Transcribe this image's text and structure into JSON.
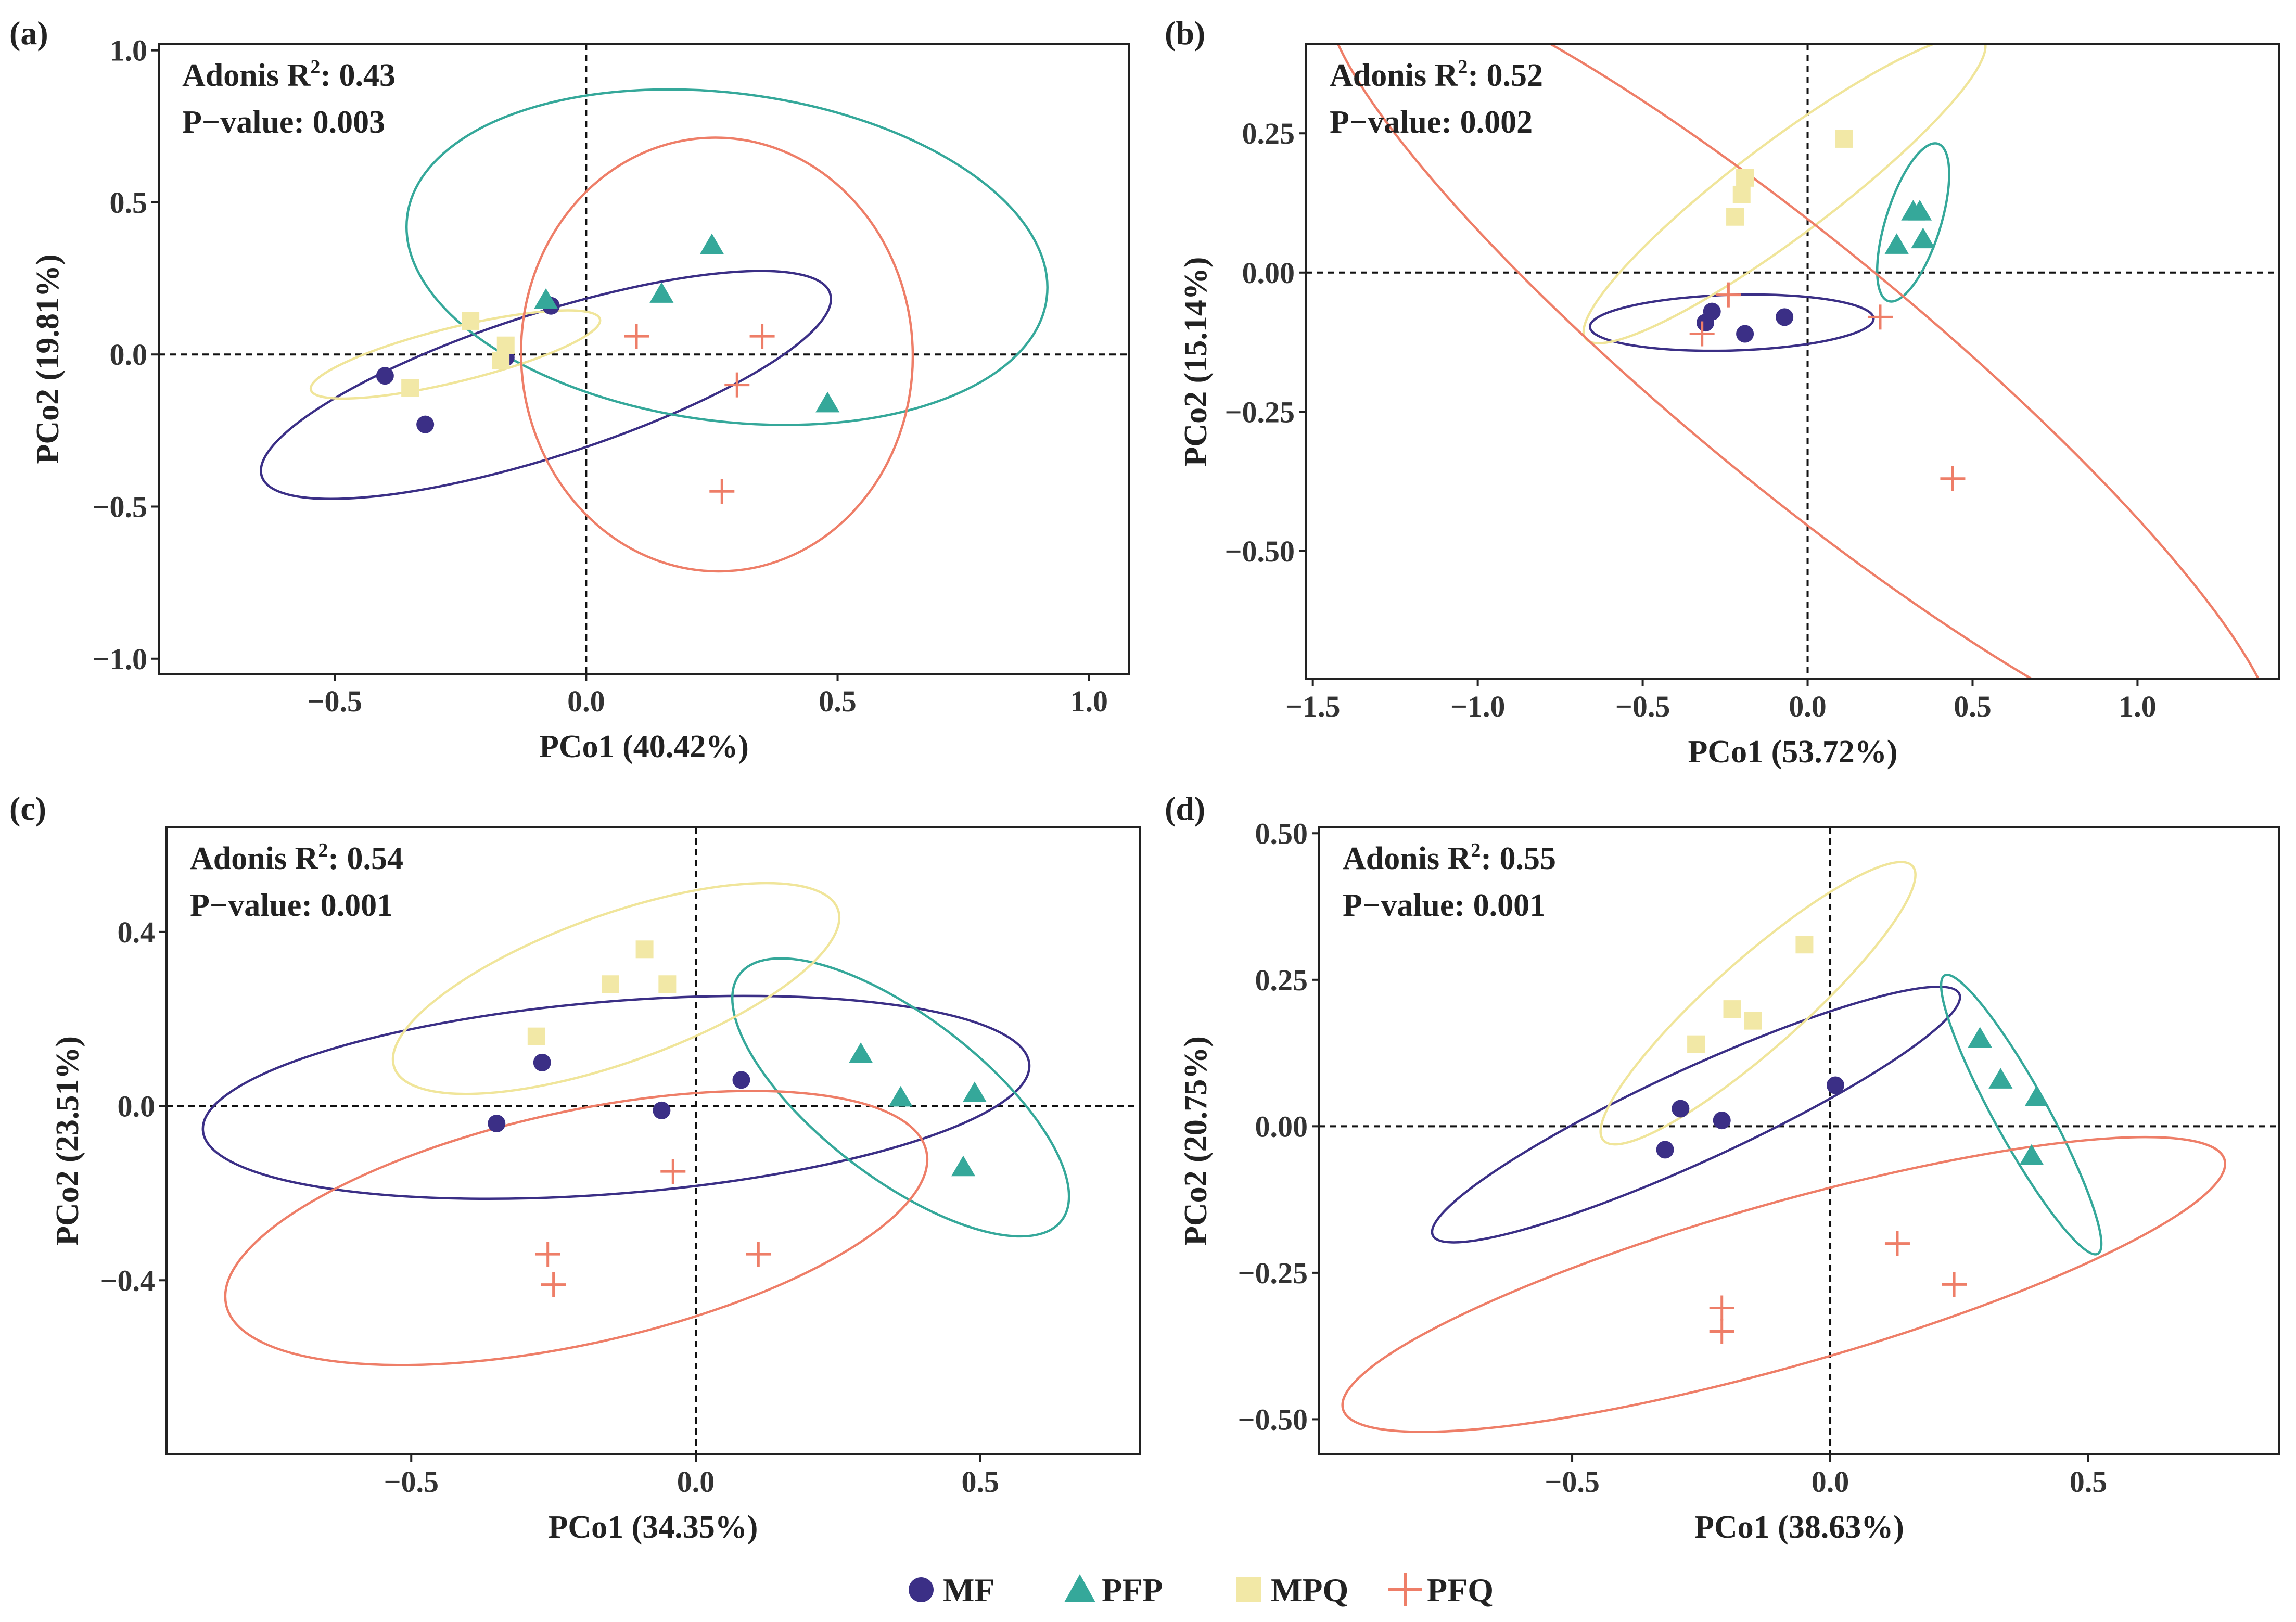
{
  "chart_data": [
    {
      "type": "scatter",
      "panel_label": "(a)",
      "xlabel": "PCo1 (40.42%)",
      "ylabel": "PCo2 (19.81%)",
      "xlim": [
        -0.85,
        1.08
      ],
      "ylim": [
        -1.05,
        1.02
      ],
      "xticks": [
        -0.5,
        0.0,
        0.5,
        1.0
      ],
      "xtick_labels": [
        "−0.5",
        "0.0",
        "0.5",
        "1.0"
      ],
      "yticks": [
        -1.0,
        -0.5,
        0.0,
        0.5,
        1.0
      ],
      "ytick_labels": [
        "−1.0",
        "−0.5",
        "0.0",
        "0.5",
        "1.0"
      ],
      "annotation": {
        "adonis_prefix": "Adonis R",
        "r2_superscript": "2",
        "adonis_value": ": 0.43",
        "pvalue_text": "P−value: 0.003"
      },
      "series": [
        {
          "name": "MF",
          "points": [
            [
              -0.4,
              -0.07
            ],
            [
              -0.32,
              -0.23
            ],
            [
              -0.16,
              -0.01
            ],
            [
              -0.07,
              0.16
            ]
          ],
          "ellipse": {
            "cx": -0.08,
            "cy": -0.1,
            "rx": 0.64,
            "ry": 0.2,
            "angle_deg": 28
          }
        },
        {
          "name": "PFP",
          "points": [
            [
              -0.08,
              0.18
            ],
            [
              0.15,
              0.2
            ],
            [
              0.25,
              0.36
            ],
            [
              0.48,
              -0.16
            ]
          ],
          "ellipse": {
            "cx": 0.28,
            "cy": 0.32,
            "rx": 0.65,
            "ry": 0.52,
            "angle_deg": -12
          }
        },
        {
          "name": "MPQ",
          "points": [
            [
              -0.23,
              0.11
            ],
            [
              -0.16,
              0.03
            ],
            [
              -0.17,
              -0.02
            ],
            [
              -0.35,
              -0.11
            ]
          ],
          "ellipse": {
            "cx": -0.26,
            "cy": 0.0,
            "rx": 0.31,
            "ry": 0.08,
            "angle_deg": 22
          }
        },
        {
          "name": "PFQ",
          "points": [
            [
              0.1,
              0.06
            ],
            [
              0.35,
              0.06
            ],
            [
              0.3,
              -0.1
            ],
            [
              0.27,
              -0.45
            ]
          ],
          "ellipse": {
            "cx": 0.26,
            "cy": 0.0,
            "rx": 0.39,
            "ry": 0.71,
            "angle_deg": 4
          }
        }
      ]
    },
    {
      "type": "scatter",
      "panel_label": "(b)",
      "xlabel": "PCo1 (53.72%)",
      "ylabel": "PCo2 (15.14%)",
      "xlim": [
        -1.52,
        1.43
      ],
      "ylim": [
        -0.73,
        0.41
      ],
      "xticks": [
        -1.5,
        -1.0,
        -0.5,
        0.0,
        0.5,
        1.0
      ],
      "xtick_labels": [
        "−1.5",
        "−1.0",
        "−0.5",
        "0.0",
        "0.5",
        "1.0"
      ],
      "yticks": [
        -0.5,
        -0.25,
        0.0,
        0.25
      ],
      "ytick_labels": [
        "−0.50",
        "−0.25",
        "0.00",
        "0.25"
      ],
      "annotation": {
        "adonis_prefix": "Adonis R",
        "r2_superscript": "2",
        "adonis_value": ": 0.52",
        "pvalue_text": "P−value: 0.002"
      },
      "series": [
        {
          "name": "MF",
          "points": [
            [
              -0.31,
              -0.09
            ],
            [
              -0.29,
              -0.07
            ],
            [
              -0.19,
              -0.11
            ],
            [
              -0.07,
              -0.08
            ]
          ],
          "ellipse": {
            "cx": -0.23,
            "cy": -0.09,
            "rx": 0.43,
            "ry": 0.05,
            "angle_deg": 1
          }
        },
        {
          "name": "PFP",
          "points": [
            [
              0.32,
              0.11
            ],
            [
              0.34,
              0.11
            ],
            [
              0.27,
              0.05
            ],
            [
              0.35,
              0.06
            ]
          ],
          "ellipse": {
            "cx": 0.32,
            "cy": 0.09,
            "rx": 0.16,
            "ry": 0.07,
            "angle_deg": 62
          }
        },
        {
          "name": "MPQ",
          "points": [
            [
              0.11,
              0.24
            ],
            [
              -0.19,
              0.17
            ],
            [
              -0.2,
              0.14
            ],
            [
              -0.22,
              0.1
            ]
          ],
          "ellipse": {
            "cx": -0.07,
            "cy": 0.15,
            "rx": 0.66,
            "ry": 0.09,
            "angle_deg": 24
          }
        },
        {
          "name": "PFQ",
          "points": [
            [
              -0.24,
              -0.04
            ],
            [
              -0.32,
              -0.11
            ],
            [
              0.22,
              -0.08
            ],
            [
              0.44,
              -0.37
            ]
          ],
          "ellipse": {
            "cx": -0.02,
            "cy": -0.17,
            "rx": 1.58,
            "ry": 0.23,
            "angle_deg": -26
          }
        }
      ]
    },
    {
      "type": "scatter",
      "panel_label": "(c)",
      "xlabel": "PCo1 (34.35%)",
      "ylabel": "PCo2 (23.51%)",
      "xlim": [
        -0.93,
        0.78
      ],
      "ylim": [
        -0.8,
        0.64
      ],
      "xticks": [
        -0.5,
        0.0,
        0.5
      ],
      "xtick_labels": [
        "−0.5",
        "0.0",
        "0.5"
      ],
      "yticks": [
        -0.4,
        0.0,
        0.4
      ],
      "ytick_labels": [
        "−0.4",
        "0.0",
        "0.4"
      ],
      "annotation": {
        "adonis_prefix": "Adonis R",
        "r2_superscript": "2",
        "adonis_value": ": 0.54",
        "pvalue_text": "P−value: 0.001"
      },
      "series": [
        {
          "name": "MF",
          "points": [
            [
              -0.27,
              0.1
            ],
            [
              -0.35,
              -0.04
            ],
            [
              -0.06,
              -0.01
            ],
            [
              0.08,
              0.06
            ]
          ],
          "ellipse": {
            "cx": -0.14,
            "cy": 0.02,
            "rx": 0.73,
            "ry": 0.22,
            "angle_deg": 6
          }
        },
        {
          "name": "PFP",
          "points": [
            [
              0.29,
              0.12
            ],
            [
              0.36,
              0.02
            ],
            [
              0.49,
              0.03
            ],
            [
              0.47,
              -0.14
            ]
          ],
          "ellipse": {
            "cx": 0.36,
            "cy": 0.02,
            "rx": 0.4,
            "ry": 0.16,
            "angle_deg": -45
          }
        },
        {
          "name": "MPQ",
          "points": [
            [
              -0.09,
              0.36
            ],
            [
              -0.15,
              0.28
            ],
            [
              -0.05,
              0.28
            ],
            [
              -0.28,
              0.16
            ]
          ],
          "ellipse": {
            "cx": -0.14,
            "cy": 0.27,
            "rx": 0.43,
            "ry": 0.16,
            "angle_deg": 25
          }
        },
        {
          "name": "PFQ",
          "points": [
            [
              -0.04,
              -0.15
            ],
            [
              0.11,
              -0.34
            ],
            [
              -0.26,
              -0.34
            ],
            [
              -0.25,
              -0.41
            ]
          ],
          "ellipse": {
            "cx": -0.21,
            "cy": -0.28,
            "rx": 0.64,
            "ry": 0.26,
            "angle_deg": 16
          }
        }
      ]
    },
    {
      "type": "scatter",
      "panel_label": "(d)",
      "xlabel": "PCo1 (38.63%)",
      "ylabel": "PCo2 (20.75%)",
      "xlim": [
        -0.99,
        0.87
      ],
      "ylim": [
        -0.56,
        0.51
      ],
      "xticks": [
        -0.5,
        0.0,
        0.5
      ],
      "xtick_labels": [
        "−0.5",
        "0.0",
        "0.5"
      ],
      "yticks": [
        -0.5,
        -0.25,
        0.0,
        0.25,
        0.5
      ],
      "ytick_labels": [
        "−0.50",
        "−0.25",
        "0.00",
        "0.25",
        "0.50"
      ],
      "annotation": {
        "adonis_prefix": "Adonis R",
        "r2_superscript": "2",
        "adonis_value": ": 0.55",
        "pvalue_text": "P−value: 0.001"
      },
      "series": [
        {
          "name": "MF",
          "points": [
            [
              -0.29,
              0.03
            ],
            [
              -0.32,
              -0.04
            ],
            [
              -0.21,
              0.01
            ],
            [
              0.01,
              0.07
            ]
          ],
          "ellipse": {
            "cx": -0.26,
            "cy": 0.02,
            "rx": 0.55,
            "ry": 0.08,
            "angle_deg": 22
          }
        },
        {
          "name": "PFP",
          "points": [
            [
              0.29,
              0.15
            ],
            [
              0.33,
              0.08
            ],
            [
              0.4,
              0.05
            ],
            [
              0.39,
              -0.05
            ]
          ],
          "ellipse": {
            "cx": 0.37,
            "cy": 0.02,
            "rx": 0.28,
            "ry": 0.05,
            "angle_deg": -58
          }
        },
        {
          "name": "MPQ",
          "points": [
            [
              -0.05,
              0.31
            ],
            [
              -0.19,
              0.2
            ],
            [
              -0.15,
              0.18
            ],
            [
              -0.26,
              0.14
            ]
          ],
          "ellipse": {
            "cx": -0.14,
            "cy": 0.21,
            "rx": 0.38,
            "ry": 0.08,
            "angle_deg": 38
          }
        },
        {
          "name": "PFQ",
          "points": [
            [
              0.13,
              -0.2
            ],
            [
              0.24,
              -0.27
            ],
            [
              -0.21,
              -0.31
            ],
            [
              -0.21,
              -0.35
            ]
          ],
          "ellipse": {
            "cx": -0.09,
            "cy": -0.27,
            "rx": 0.88,
            "ry": 0.14,
            "angle_deg": 14
          }
        }
      ]
    }
  ],
  "legend": [
    {
      "name": "MF",
      "label": "MF"
    },
    {
      "name": "PFP",
      "label": "PFP"
    },
    {
      "name": "MPQ",
      "label": "MPQ"
    },
    {
      "name": "PFQ",
      "label": "PFQ"
    }
  ],
  "colors": {
    "MF": "#3b2f86",
    "PFP": "#35a89a",
    "MPQ": "#f2e8a6",
    "PFQ": "#ee7e68",
    "MF_ellipse": "#3b2f86",
    "PFP_ellipse": "#35a89a",
    "MPQ_ellipse": "#f0e59a",
    "PFQ_ellipse": "#ee7e68",
    "axis": "#222222"
  },
  "markers": {
    "MF": "circle",
    "PFP": "triangle",
    "MPQ": "square",
    "PFQ": "plus"
  }
}
